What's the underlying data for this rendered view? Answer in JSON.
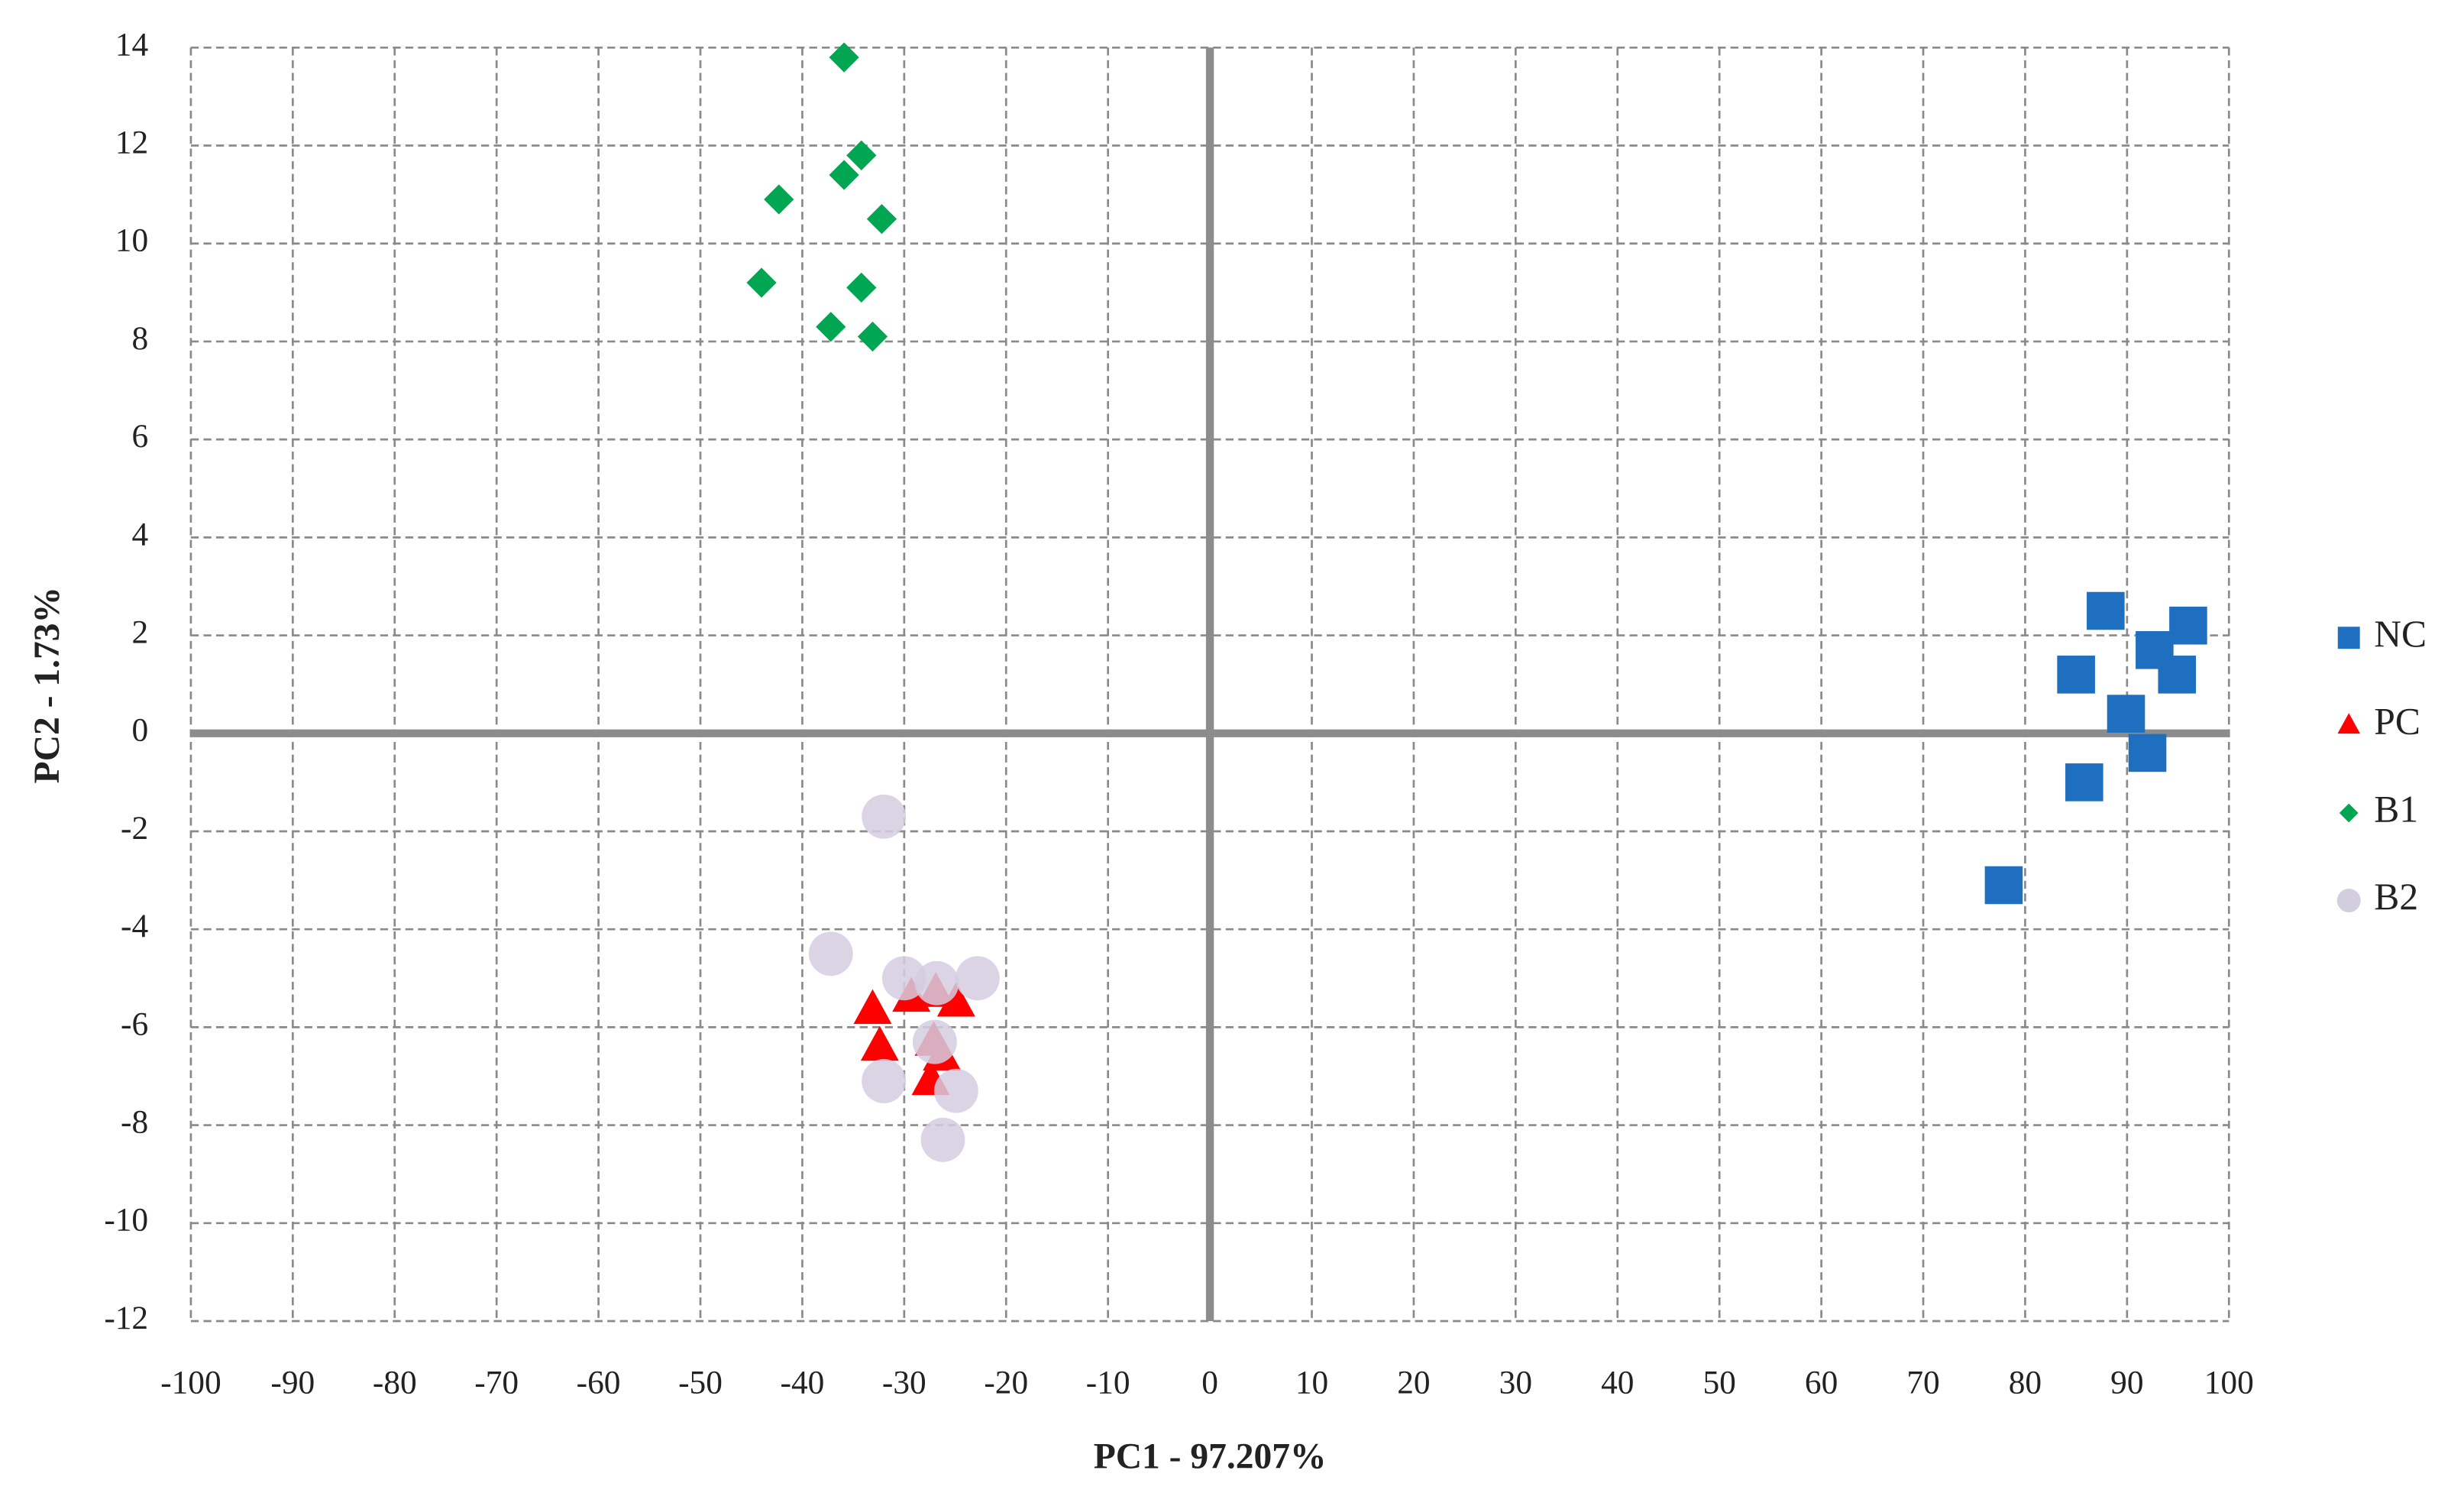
{
  "chart_data": {
    "type": "scatter",
    "x_label": "PC1  - 97.207%",
    "y_label": "PC2 - 1.73%",
    "xlim": [
      -100,
      100
    ],
    "ylim": [
      -12,
      14
    ],
    "xticks": [
      -100,
      -90,
      -80,
      -70,
      -60,
      -50,
      -40,
      -30,
      -20,
      -10,
      0,
      10,
      20,
      30,
      40,
      50,
      60,
      70,
      80,
      90,
      100
    ],
    "yticks": [
      -12,
      -10,
      -8,
      -6,
      -4,
      -2,
      0,
      2,
      4,
      6,
      8,
      10,
      12,
      14
    ],
    "grid": true,
    "legend": "right",
    "series": [
      {
        "name": "NC",
        "color": "#1f6fc1",
        "marker": "square",
        "x": [
          87.9,
          96,
          92.7,
          85,
          94.9,
          89.9,
          92,
          85.8,
          77.9
        ],
        "values": [
          2.5,
          2.2,
          1.7,
          1.2,
          1.2,
          0.4,
          -0.4,
          -1.0,
          -3.1
        ]
      },
      {
        "name": "PC",
        "color": "#ff0000",
        "marker": "triangle",
        "x": [
          -33.1,
          -32.4,
          -29.3,
          -26.9,
          -24.9,
          -27.1,
          -26.3,
          -27.4
        ],
        "values": [
          -5.65,
          -6.4,
          -5.4,
          -5.3,
          -5.5,
          -6.3,
          -6.6,
          -7.1
        ]
      },
      {
        "name": "B1",
        "color": "#00a651",
        "marker": "diamond",
        "x": [
          -35.9,
          -34.2,
          -35.9,
          -42.3,
          -32.2,
          -44,
          -34.2,
          -37.2,
          -33.1
        ],
        "values": [
          13.8,
          11.8,
          11.4,
          10.9,
          10.5,
          9.2,
          9.1,
          8.3,
          8.1
        ]
      },
      {
        "name": "B2",
        "color": "#d3cde0",
        "marker": "circle",
        "x": [
          -32,
          -37.2,
          -30,
          -26.8,
          -22.8,
          -32,
          -24.9,
          -26.2,
          -27
        ],
        "values": [
          -1.7,
          -4.5,
          -5,
          -5.1,
          -5,
          -7.1,
          -7.3,
          -8.3,
          -6.3
        ]
      }
    ]
  }
}
